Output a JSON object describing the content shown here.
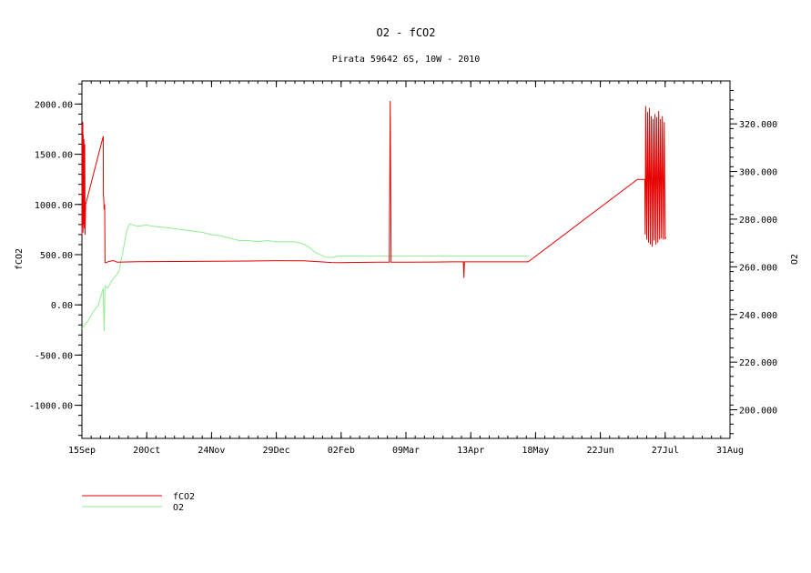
{
  "chart_data": {
    "type": "line",
    "title": "O2 - fCO2",
    "subtitle": "Pirata 59642 6S, 10W - 2010",
    "x_axis": {
      "ticks": [
        {
          "label": "15Sep",
          "day": 0
        },
        {
          "label": "20Oct",
          "day": 35
        },
        {
          "label": "24Nov",
          "day": 70
        },
        {
          "label": "29Dec",
          "day": 105
        },
        {
          "label": "02Feb",
          "day": 140
        },
        {
          "label": "09Mar",
          "day": 175
        },
        {
          "label": "13Apr",
          "day": 210
        },
        {
          "label": "18May",
          "day": 245
        },
        {
          "label": "22Jun",
          "day": 280
        },
        {
          "label": "27Jul",
          "day": 315
        },
        {
          "label": "31Aug",
          "day": 350
        }
      ],
      "range": [
        "15Sep",
        "31Aug"
      ]
    },
    "y_left": {
      "label": "fCO2",
      "ticks": [
        "2000.00",
        "1500.00",
        "1000.00",
        "500.00",
        "0.00",
        "-500.00",
        "-1000.00"
      ],
      "range": [
        -1330,
        2230
      ]
    },
    "y_right": {
      "label": "O2",
      "ticks": [
        "320.000",
        "300.000",
        "280.000",
        "260.000",
        "240.000",
        "220.000",
        "200.000"
      ],
      "range": [
        188,
        338
      ]
    },
    "series": [
      {
        "name": "fCO2",
        "color": "#e60000",
        "axis": "left",
        "points": [
          [
            0,
            700
          ],
          [
            0.1,
            1800
          ],
          [
            0.2,
            850
          ],
          [
            0.3,
            1750
          ],
          [
            0.4,
            780
          ],
          [
            0.5,
            1820
          ],
          [
            0.6,
            720
          ],
          [
            0.7,
            1700
          ],
          [
            0.9,
            800
          ],
          [
            1.1,
            1650
          ],
          [
            1.3,
            760
          ],
          [
            1.5,
            1600
          ],
          [
            1.7,
            700
          ],
          [
            2,
            1000
          ],
          [
            11.5,
            1680
          ],
          [
            11.6,
            1100
          ],
          [
            11.8,
            1050
          ],
          [
            12,
            950
          ],
          [
            12.3,
            1000
          ],
          [
            12.5,
            420
          ],
          [
            13,
            420
          ],
          [
            15,
            435
          ],
          [
            17,
            440
          ],
          [
            19,
            425
          ],
          [
            30,
            430
          ],
          [
            50,
            432
          ],
          [
            70,
            434
          ],
          [
            90,
            436
          ],
          [
            105,
            440
          ],
          [
            120,
            438
          ],
          [
            128,
            430
          ],
          [
            132,
            425
          ],
          [
            135,
            422
          ],
          [
            140,
            421
          ],
          [
            160,
            425
          ],
          [
            166,
            425
          ],
          [
            166.5,
            2030
          ],
          [
            167,
            425
          ],
          [
            175,
            425
          ],
          [
            190,
            426
          ],
          [
            200,
            428
          ],
          [
            206,
            428
          ],
          [
            206.3,
            270
          ],
          [
            206.6,
            428
          ],
          [
            220,
            428
          ],
          [
            240,
            428
          ],
          [
            241,
            428
          ],
          [
            300,
            1250
          ],
          [
            304,
            1250
          ],
          [
            304.2,
            700
          ],
          [
            304.5,
            1980
          ],
          [
            305,
            650
          ],
          [
            305.5,
            1920
          ],
          [
            306,
            620
          ],
          [
            306.5,
            1960
          ],
          [
            307,
            600
          ],
          [
            307.5,
            1880
          ],
          [
            308,
            580
          ],
          [
            308.5,
            1850
          ],
          [
            309,
            640
          ],
          [
            309.5,
            1900
          ],
          [
            310,
            600
          ],
          [
            310.5,
            1870
          ],
          [
            311,
            620
          ],
          [
            311.5,
            1930
          ],
          [
            312,
            650
          ],
          [
            312.5,
            1850
          ],
          [
            313,
            660
          ],
          [
            313.5,
            1880
          ],
          [
            314,
            650
          ],
          [
            314.5,
            1820
          ],
          [
            315,
            660
          ],
          [
            315.5,
            670
          ]
        ]
      },
      {
        "name": "O2",
        "color": "#90ee90",
        "axis": "right",
        "points": [
          [
            0,
            234
          ],
          [
            3,
            237
          ],
          [
            6,
            241
          ],
          [
            9,
            244
          ],
          [
            10,
            247
          ],
          [
            11.5,
            251
          ],
          [
            12,
            233
          ],
          [
            12.5,
            252
          ],
          [
            14,
            251
          ],
          [
            16,
            254
          ],
          [
            18,
            256
          ],
          [
            20,
            258
          ],
          [
            22,
            266
          ],
          [
            24,
            274
          ],
          [
            25,
            277
          ],
          [
            26,
            278
          ],
          [
            30,
            277
          ],
          [
            35,
            277.5
          ],
          [
            40,
            276.8
          ],
          [
            45,
            276.5
          ],
          [
            50,
            276
          ],
          [
            55,
            275.5
          ],
          [
            60,
            275
          ],
          [
            65,
            274.5
          ],
          [
            70,
            273.5
          ],
          [
            75,
            273
          ],
          [
            80,
            272
          ],
          [
            85,
            271
          ],
          [
            90,
            271
          ],
          [
            95,
            270.5
          ],
          [
            100,
            271
          ],
          [
            105,
            270.5
          ],
          [
            110,
            270.5
          ],
          [
            115,
            270.5
          ],
          [
            118,
            270
          ],
          [
            120,
            269.5
          ],
          [
            123,
            268
          ],
          [
            126,
            266
          ],
          [
            129,
            265
          ],
          [
            132,
            264
          ],
          [
            136,
            264
          ],
          [
            138,
            264.5
          ],
          [
            139,
            264.5
          ],
          [
            140,
            264.5
          ],
          [
            150,
            264.5
          ],
          [
            166,
            264.5
          ],
          [
            180,
            264.5
          ],
          [
            200,
            264.5
          ],
          [
            220,
            264.5
          ],
          [
            240,
            264.5
          ],
          [
            241,
            264.5
          ]
        ]
      }
    ],
    "legend": {
      "placement": "bottom-left",
      "entries": [
        {
          "name": "fCO2",
          "color": "#e60000"
        },
        {
          "name": "O2",
          "color": "#90ee90"
        }
      ]
    }
  }
}
